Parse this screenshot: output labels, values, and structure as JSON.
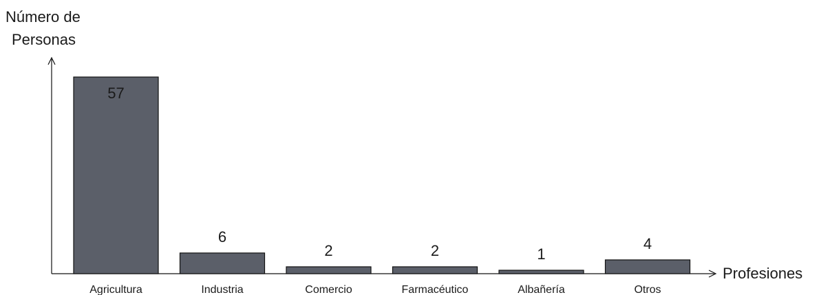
{
  "chart_data": {
    "type": "bar",
    "categories": [
      "Agricultura",
      "Industria",
      "Comercio",
      "Farmacéutico",
      "Albañería",
      "Otros"
    ],
    "values": [
      57,
      6,
      2,
      2,
      1,
      4
    ],
    "data_labels": [
      "57",
      "6",
      "2",
      "2",
      "1",
      "4"
    ],
    "ylabel_lines": [
      "Número de",
      "Personas"
    ],
    "xlabel": "Profesiones",
    "ylim": [
      0,
      57
    ],
    "grid": false,
    "bar_color": "#5b5f69"
  }
}
